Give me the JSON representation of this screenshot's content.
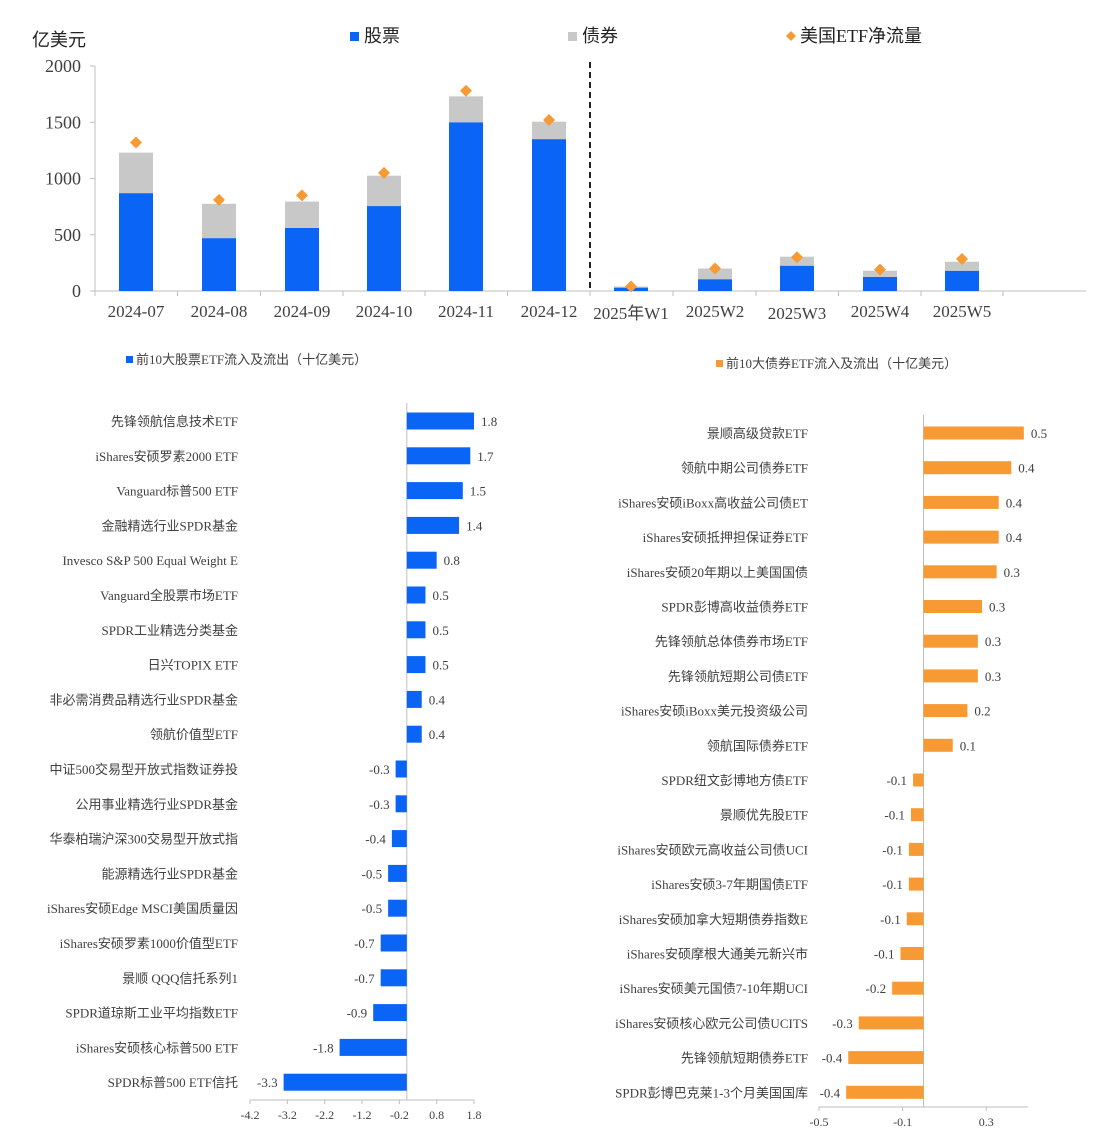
{
  "colors": {
    "stock": "#0a64f5",
    "bond": "#c8c8c8",
    "flow": "#f79a33",
    "axis": "#bfbfbf",
    "text": "#404040"
  },
  "chart_data": [
    {
      "type": "bar",
      "stacked": true,
      "ylabel": "亿美元",
      "ylim": [
        0,
        2000
      ],
      "yticks": [
        0,
        500,
        1000,
        1500,
        2000
      ],
      "legend": [
        "股票",
        "债券",
        "美国ETF净流量"
      ],
      "legend_position": "top",
      "categories": [
        "2024-07",
        "2024-08",
        "2024-09",
        "2024-10",
        "2024-11",
        "2024-12",
        "2025年W1",
        "2025W2",
        "2025W3",
        "2025W4",
        "2025W5"
      ],
      "series": [
        {
          "name": "股票",
          "type": "bar",
          "values": [
            870,
            470,
            560,
            755,
            1500,
            1350,
            30,
            105,
            225,
            125,
            180
          ]
        },
        {
          "name": "债券",
          "type": "bar",
          "values": [
            360,
            305,
            235,
            270,
            230,
            155,
            10,
            95,
            80,
            55,
            80
          ]
        },
        {
          "name": "美国ETF净流量",
          "type": "scatter",
          "values": [
            1320,
            810,
            850,
            1050,
            1780,
            1520,
            40,
            200,
            300,
            190,
            285
          ]
        }
      ],
      "divider_after_category": "2024-12"
    },
    {
      "type": "bar",
      "orientation": "horizontal",
      "legend": [
        "前10大股票ETF流入及流出（十亿美元）"
      ],
      "xlim": [
        -4.2,
        1.8
      ],
      "xticks": [
        -4.2,
        -3.2,
        -2.2,
        -1.2,
        -0.2,
        0.8,
        1.8
      ],
      "xtick_labels": [
        "-4.2",
        "-3.2",
        "-2.2",
        "-1.2",
        "-0.2",
        "0.8",
        "1.8"
      ],
      "categories": [
        "先锋领航信息技术ETF",
        "iShares安硕罗素2000 ETF",
        "Vanguard标普500 ETF",
        "金融精选行业SPDR基金",
        "Invesco S&P 500 Equal Weight E",
        "Vanguard全股票市场ETF",
        "SPDR工业精选分类基金",
        "日兴TOPIX ETF",
        "非必需消费品精选行业SPDR基金",
        "领航价值型ETF",
        "中证500交易型开放式指数证券投",
        "公用事业精选行业SPDR基金",
        "华泰柏瑞沪深300交易型开放式指",
        "能源精选行业SPDR基金",
        "iShares安硕Edge MSCI美国质量因",
        "iShares安硕罗素1000价值型ETF",
        "景顺 QQQ信托系列1",
        "SPDR道琼斯工业平均指数ETF",
        "iShares安硕核心标普500 ETF",
        "SPDR标普500 ETF信托"
      ],
      "values": [
        1.8,
        1.7,
        1.5,
        1.4,
        0.8,
        0.5,
        0.5,
        0.5,
        0.4,
        0.4,
        -0.3,
        -0.3,
        -0.4,
        -0.5,
        -0.5,
        -0.7,
        -0.7,
        -0.9,
        -1.8,
        -3.3
      ],
      "labels": [
        "1.8",
        "1.7",
        "1.5",
        "1.4",
        "0.8",
        "0.5",
        "0.5",
        "0.5",
        "0.4",
        "0.4",
        "-0.3",
        "-0.3",
        "-0.4",
        "-0.5",
        "-0.5",
        "-0.7",
        "-0.7",
        "-0.9",
        "-1.8",
        "-3.3"
      ]
    },
    {
      "type": "bar",
      "orientation": "horizontal",
      "legend": [
        "前10大债券ETF流入及流出（十亿美元）"
      ],
      "xlim": [
        -0.5,
        0.5
      ],
      "xticks": [
        -0.5,
        -0.1,
        0.3
      ],
      "xtick_labels": [
        "-0.5",
        "-0.1",
        "0.3"
      ],
      "categories": [
        "景顺高级贷款ETF",
        "领航中期公司债券ETF",
        "iShares安硕iBoxx高收益公司债ET",
        "iShares安硕抵押担保证券ETF",
        "iShares安硕20年期以上美国国债",
        "SPDR彭博高收益债券ETF",
        "先锋领航总体债券市场ETF",
        "先锋领航短期公司债ETF",
        "iShares安硕iBoxx美元投资级公司",
        "领航国际债券ETF",
        "SPDR纽文彭博地方债ETF",
        "景顺优先股ETF",
        "iShares安硕欧元高收益公司债UCI",
        "iShares安硕3-7年期国债ETF",
        "iShares安硕加拿大短期债券指数E",
        "iShares安硕摩根大通美元新兴市",
        "iShares安硕美元国债7-10年期UCI",
        "iShares安硕核心欧元公司债UCITS",
        "先锋领航短期债券ETF",
        "SPDR彭博巴克莱1-3个月美国国库"
      ],
      "values": [
        0.48,
        0.42,
        0.36,
        0.36,
        0.35,
        0.28,
        0.26,
        0.26,
        0.21,
        0.14,
        -0.05,
        -0.06,
        -0.07,
        -0.07,
        -0.08,
        -0.11,
        -0.15,
        -0.31,
        -0.36,
        -0.37
      ],
      "labels": [
        "0.5",
        "0.4",
        "0.4",
        "0.4",
        "0.3",
        "0.3",
        "0.3",
        "0.3",
        "0.2",
        "0.1",
        "-0.1",
        "-0.1",
        "-0.1",
        "-0.1",
        "-0.1",
        "-0.1",
        "-0.2",
        "-0.3",
        "-0.4",
        "-0.4"
      ]
    }
  ]
}
